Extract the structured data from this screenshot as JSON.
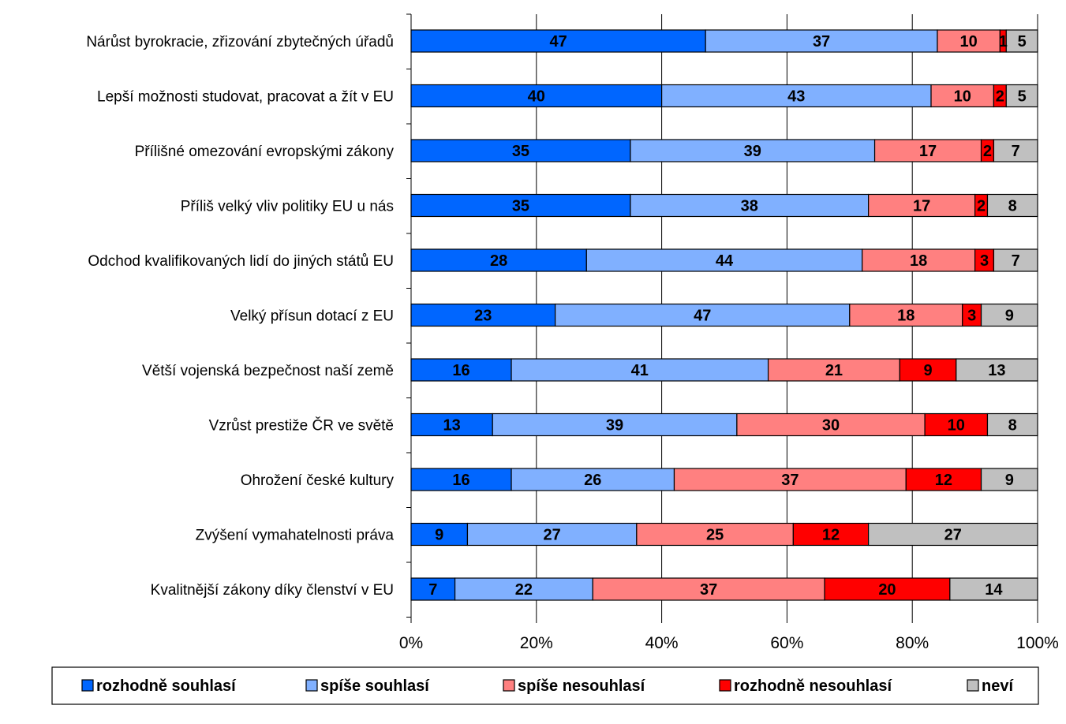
{
  "chart_data": {
    "type": "bar",
    "orientation": "horizontal",
    "stacked": "percent",
    "categories": [
      "Nárůst byrokracie, zřizování zbytečných úřadů",
      "Lepší možnosti studovat, pracovat a žít v EU",
      "Přílišné omezování evropskými zákony",
      "Příliš velký vliv politiky EU u nás",
      "Odchod kvalifikovaných lidí do jiných států EU",
      "Velký přísun dotací z EU",
      "Větší vojenská bezpečnost naší země",
      "Vzrůst prestiže ČR ve světě",
      "Ohrožení české kultury",
      "Zvýšení vymahatelnosti práva",
      "Kvalitnější zákony díky členství v EU"
    ],
    "series": [
      {
        "name": "rozhodně souhlasí",
        "color": "#0066ff",
        "values": [
          47,
          40,
          35,
          35,
          28,
          23,
          16,
          13,
          16,
          9,
          7
        ]
      },
      {
        "name": "spíše souhlasí",
        "color": "#80b0ff",
        "values": [
          37,
          43,
          39,
          38,
          44,
          47,
          41,
          39,
          26,
          27,
          22
        ]
      },
      {
        "name": "spíše nesouhlasí",
        "color": "#ff8080",
        "values": [
          10,
          10,
          17,
          17,
          18,
          18,
          21,
          30,
          37,
          25,
          37
        ]
      },
      {
        "name": "rozhodně nesouhlasí",
        "color": "#ff0000",
        "values": [
          1,
          2,
          2,
          2,
          3,
          3,
          9,
          10,
          12,
          12,
          20
        ]
      },
      {
        "name": "neví",
        "color": "#c0c0c0",
        "values": [
          5,
          5,
          7,
          8,
          7,
          9,
          13,
          8,
          9,
          27,
          14
        ]
      }
    ],
    "xlim": [
      0,
      100
    ],
    "x_ticks": [
      "0%",
      "20%",
      "40%",
      "60%",
      "80%",
      "100%"
    ],
    "grid": true,
    "legend_position": "bottom",
    "title": "",
    "xlabel": "",
    "ylabel": ""
  }
}
